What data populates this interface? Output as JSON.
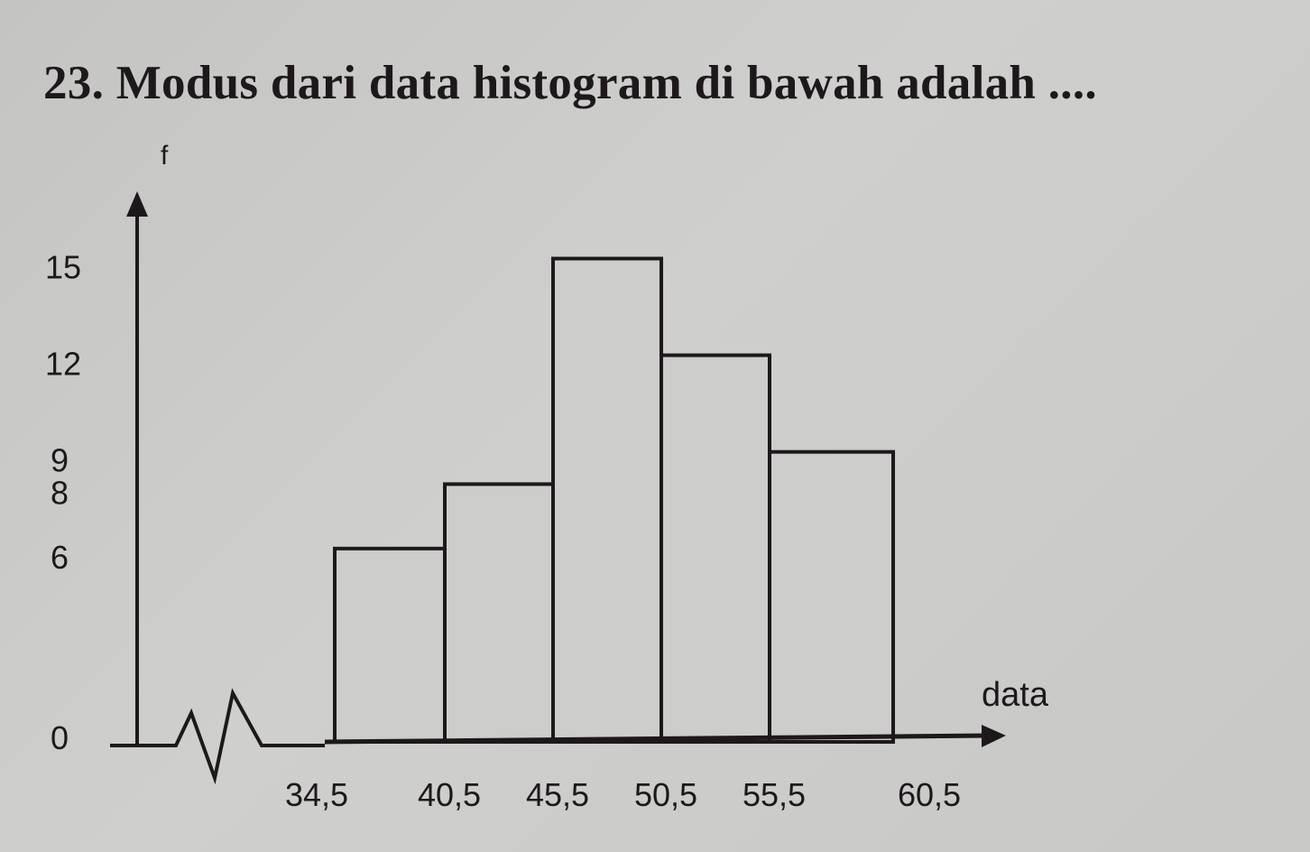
{
  "question": {
    "title": "23. Modus dari data histogram di bawah adalah ...."
  },
  "chart_data": {
    "type": "bar",
    "subtype": "histogram",
    "title": "",
    "ylabel": "f",
    "xlabel": "data",
    "bin_edges": [
      "34,5",
      "40,5",
      "45,5",
      "50,5",
      "55,5",
      "60,5"
    ],
    "bins": [
      {
        "from": 34.5,
        "to": 40.5,
        "value": 6
      },
      {
        "from": 40.5,
        "to": 45.5,
        "value": 8
      },
      {
        "from": 45.5,
        "to": 50.5,
        "value": 15
      },
      {
        "from": 50.5,
        "to": 55.5,
        "value": 12
      },
      {
        "from": 55.5,
        "to": 60.5,
        "value": 9
      }
    ],
    "y_ticks": [
      "0",
      "6",
      "8",
      "9",
      "12",
      "15"
    ],
    "y_tick_values": [
      0,
      6,
      8,
      9,
      12,
      15
    ],
    "ylim": [
      0,
      16
    ],
    "x_axis_break": true,
    "grid": false,
    "colors": {
      "ink": "#1d191b",
      "bar_fill": "#cdcdcb",
      "background": "#c9c9c7"
    }
  }
}
